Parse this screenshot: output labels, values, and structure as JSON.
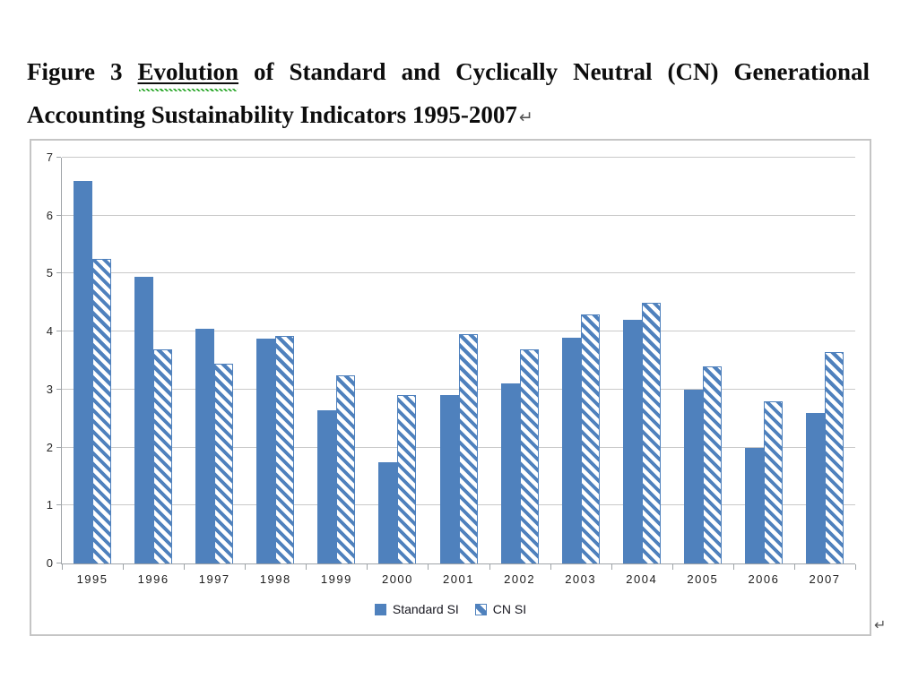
{
  "page": {
    "title_prefix": "Figure 3",
    "title_misspelled_word": "Evolution",
    "title_line1_rest": "of Standard and Cyclically Neutral (CN) Generational",
    "title_line2": "Accounting Sustainability Indicators 1995-2007",
    "paragraph_mark": "↵"
  },
  "colors": {
    "bar_blue": "#4F81BD",
    "gridline_gray": "#C9C9C9",
    "axis_gray": "#9FA4A8",
    "chart_border_gray": "#C5C5C5",
    "spellcheck_green": "#2DA82D"
  },
  "chart_data": {
    "type": "bar",
    "title": "",
    "xlabel": "",
    "ylabel": "",
    "categories": [
      "1995",
      "1996",
      "1997",
      "1998",
      "1999",
      "2000",
      "2001",
      "2002",
      "2003",
      "2004",
      "2005",
      "2006",
      "2007"
    ],
    "series": [
      {
        "name": "Standard SI",
        "style": "solid",
        "values": [
          6.6,
          4.95,
          4.05,
          3.88,
          2.65,
          1.75,
          2.9,
          3.1,
          3.9,
          4.2,
          3.0,
          2.0,
          2.6
        ]
      },
      {
        "name": "CN SI",
        "style": "hatched",
        "values": [
          5.25,
          3.7,
          3.45,
          3.92,
          3.25,
          2.9,
          3.95,
          3.7,
          4.3,
          4.5,
          3.4,
          2.8,
          3.65
        ]
      }
    ],
    "ylim": [
      0,
      7
    ],
    "yticks": [
      0,
      1,
      2,
      3,
      4,
      5,
      6,
      7
    ],
    "grid": "horizontal",
    "legend_position": "bottom-center"
  }
}
